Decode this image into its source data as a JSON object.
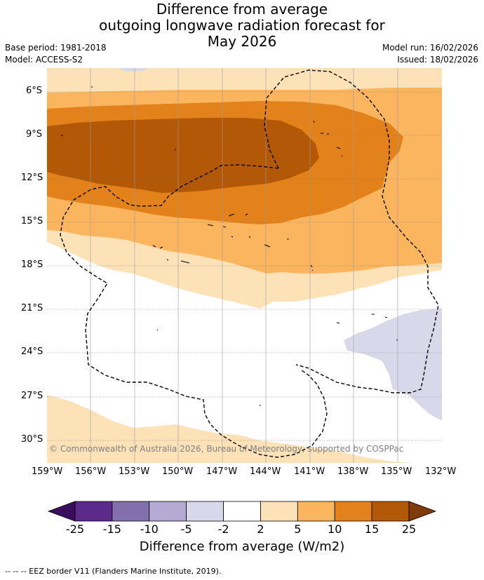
{
  "title_lines": [
    "Difference from average",
    "outgoing longwave radiation forecast for",
    "May 2026"
  ],
  "base_period": "Base period: 1981-2018",
  "model": "Model: ACCESS-S2",
  "model_run": "Model run: 16/02/2026",
  "issued": "Issued: 18/02/2026",
  "latitude_labels": [
    "6°S",
    "9°S",
    "12°S",
    "15°S",
    "18°S",
    "21°S",
    "24°S",
    "27°S",
    "30°S"
  ],
  "longitude_labels": [
    "159°W",
    "156°W",
    "153°W",
    "150°W",
    "147°W",
    "144°W",
    "141°W",
    "138°W",
    "135°W",
    "132°W"
  ],
  "copyright": "© Commonwealth of Australia 2026, Bureau of Meteorology, supported by COSPPac",
  "colorbar": {
    "title": "Difference from average (W/m2)",
    "tick_labels": [
      "-25",
      "-15",
      "-10",
      "-5",
      "-2",
      "2",
      "5",
      "10",
      "15",
      "25"
    ],
    "colors": [
      "#5b2a8a",
      "#8270ad",
      "#b4aad3",
      "#d9d8ea",
      "#ffffff",
      "#fde1b7",
      "#fbb55f",
      "#e3821a",
      "#b35806"
    ],
    "extend_low_color": "#3a0d5e",
    "extend_high_color": "#7f3b08"
  },
  "footer": "--  --  -- EEZ border V11 (Flanders Marine Institute, 2019)."
}
